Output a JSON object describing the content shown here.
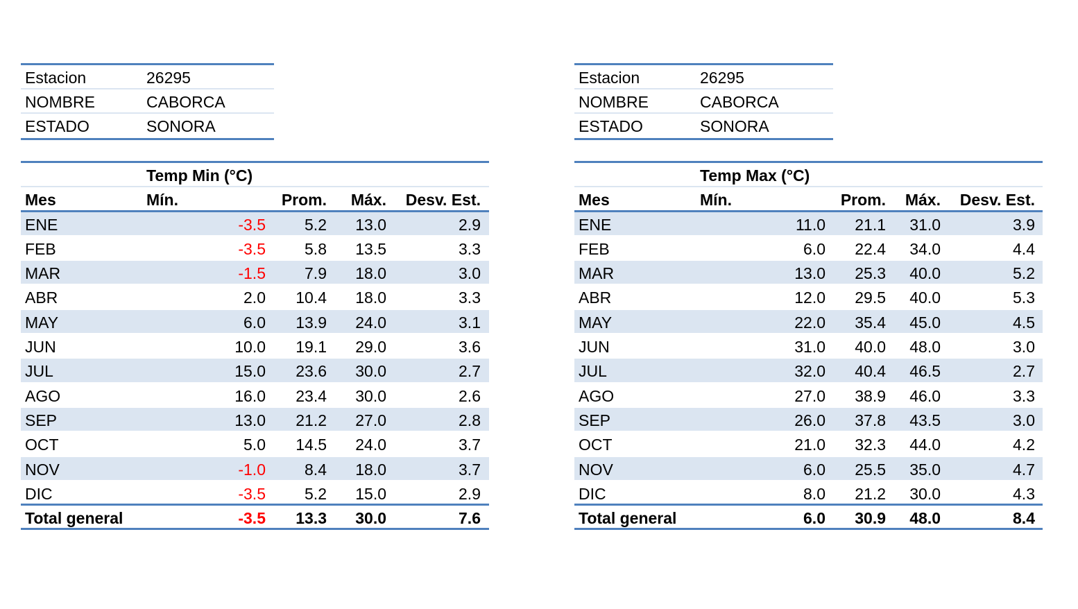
{
  "left": {
    "station": [
      {
        "label": "Estacion",
        "value": "26295"
      },
      {
        "label": "NOMBRE",
        "value": "CABORCA"
      },
      {
        "label": "ESTADO",
        "value": "SONORA"
      }
    ],
    "table": {
      "title": "Temp Min (°C)",
      "headers": {
        "mes": "Mes",
        "min": "Mín.",
        "prom": "Prom.",
        "max": "Máx.",
        "desv": "Desv. Est."
      },
      "rows": [
        {
          "mes": "ENE",
          "min": "-3.5",
          "prom": "5.2",
          "max": "13.0",
          "desv": "2.9"
        },
        {
          "mes": "FEB",
          "min": "-3.5",
          "prom": "5.8",
          "max": "13.5",
          "desv": "3.3"
        },
        {
          "mes": "MAR",
          "min": "-1.5",
          "prom": "7.9",
          "max": "18.0",
          "desv": "3.0"
        },
        {
          "mes": "ABR",
          "min": "2.0",
          "prom": "10.4",
          "max": "18.0",
          "desv": "3.3"
        },
        {
          "mes": "MAY",
          "min": "6.0",
          "prom": "13.9",
          "max": "24.0",
          "desv": "3.1"
        },
        {
          "mes": "JUN",
          "min": "10.0",
          "prom": "19.1",
          "max": "29.0",
          "desv": "3.6"
        },
        {
          "mes": "JUL",
          "min": "15.0",
          "prom": "23.6",
          "max": "30.0",
          "desv": "2.7"
        },
        {
          "mes": "AGO",
          "min": "16.0",
          "prom": "23.4",
          "max": "30.0",
          "desv": "2.6"
        },
        {
          "mes": "SEP",
          "min": "13.0",
          "prom": "21.2",
          "max": "27.0",
          "desv": "2.8"
        },
        {
          "mes": "OCT",
          "min": "5.0",
          "prom": "14.5",
          "max": "24.0",
          "desv": "3.7"
        },
        {
          "mes": "NOV",
          "min": "-1.0",
          "prom": "8.4",
          "max": "18.0",
          "desv": "3.7"
        },
        {
          "mes": "DIC",
          "min": "-3.5",
          "prom": "5.2",
          "max": "15.0",
          "desv": "2.9"
        }
      ],
      "total": {
        "mes": "Total general",
        "min": "-3.5",
        "prom": "13.3",
        "max": "30.0",
        "desv": "7.6"
      }
    }
  },
  "right": {
    "station": [
      {
        "label": "Estacion",
        "value": "26295"
      },
      {
        "label": "NOMBRE",
        "value": "CABORCA"
      },
      {
        "label": "ESTADO",
        "value": "SONORA"
      }
    ],
    "table": {
      "title": "Temp Max (°C)",
      "headers": {
        "mes": "Mes",
        "min": "Mín.",
        "prom": "Prom.",
        "max": "Máx.",
        "desv": "Desv. Est."
      },
      "rows": [
        {
          "mes": "ENE",
          "min": "11.0",
          "prom": "21.1",
          "max": "31.0",
          "desv": "3.9"
        },
        {
          "mes": "FEB",
          "min": "6.0",
          "prom": "22.4",
          "max": "34.0",
          "desv": "4.4"
        },
        {
          "mes": "MAR",
          "min": "13.0",
          "prom": "25.3",
          "max": "40.0",
          "desv": "5.2"
        },
        {
          "mes": "ABR",
          "min": "12.0",
          "prom": "29.5",
          "max": "40.0",
          "desv": "5.3"
        },
        {
          "mes": "MAY",
          "min": "22.0",
          "prom": "35.4",
          "max": "45.0",
          "desv": "4.5"
        },
        {
          "mes": "JUN",
          "min": "31.0",
          "prom": "40.0",
          "max": "48.0",
          "desv": "3.0"
        },
        {
          "mes": "JUL",
          "min": "32.0",
          "prom": "40.4",
          "max": "46.5",
          "desv": "2.7"
        },
        {
          "mes": "AGO",
          "min": "27.0",
          "prom": "38.9",
          "max": "46.0",
          "desv": "3.3"
        },
        {
          "mes": "SEP",
          "min": "26.0",
          "prom": "37.8",
          "max": "43.5",
          "desv": "3.0"
        },
        {
          "mes": "OCT",
          "min": "21.0",
          "prom": "32.3",
          "max": "44.0",
          "desv": "4.2"
        },
        {
          "mes": "NOV",
          "min": "6.0",
          "prom": "25.5",
          "max": "35.0",
          "desv": "4.7"
        },
        {
          "mes": "DIC",
          "min": "8.0",
          "prom": "21.2",
          "max": "30.0",
          "desv": "4.3"
        }
      ],
      "total": {
        "mes": "Total general",
        "min": "6.0",
        "prom": "30.9",
        "max": "48.0",
        "desv": "8.4"
      }
    }
  },
  "colors": {
    "border": "#4f81bd",
    "band": "#dbe5f1",
    "negative": "#ff0000"
  }
}
